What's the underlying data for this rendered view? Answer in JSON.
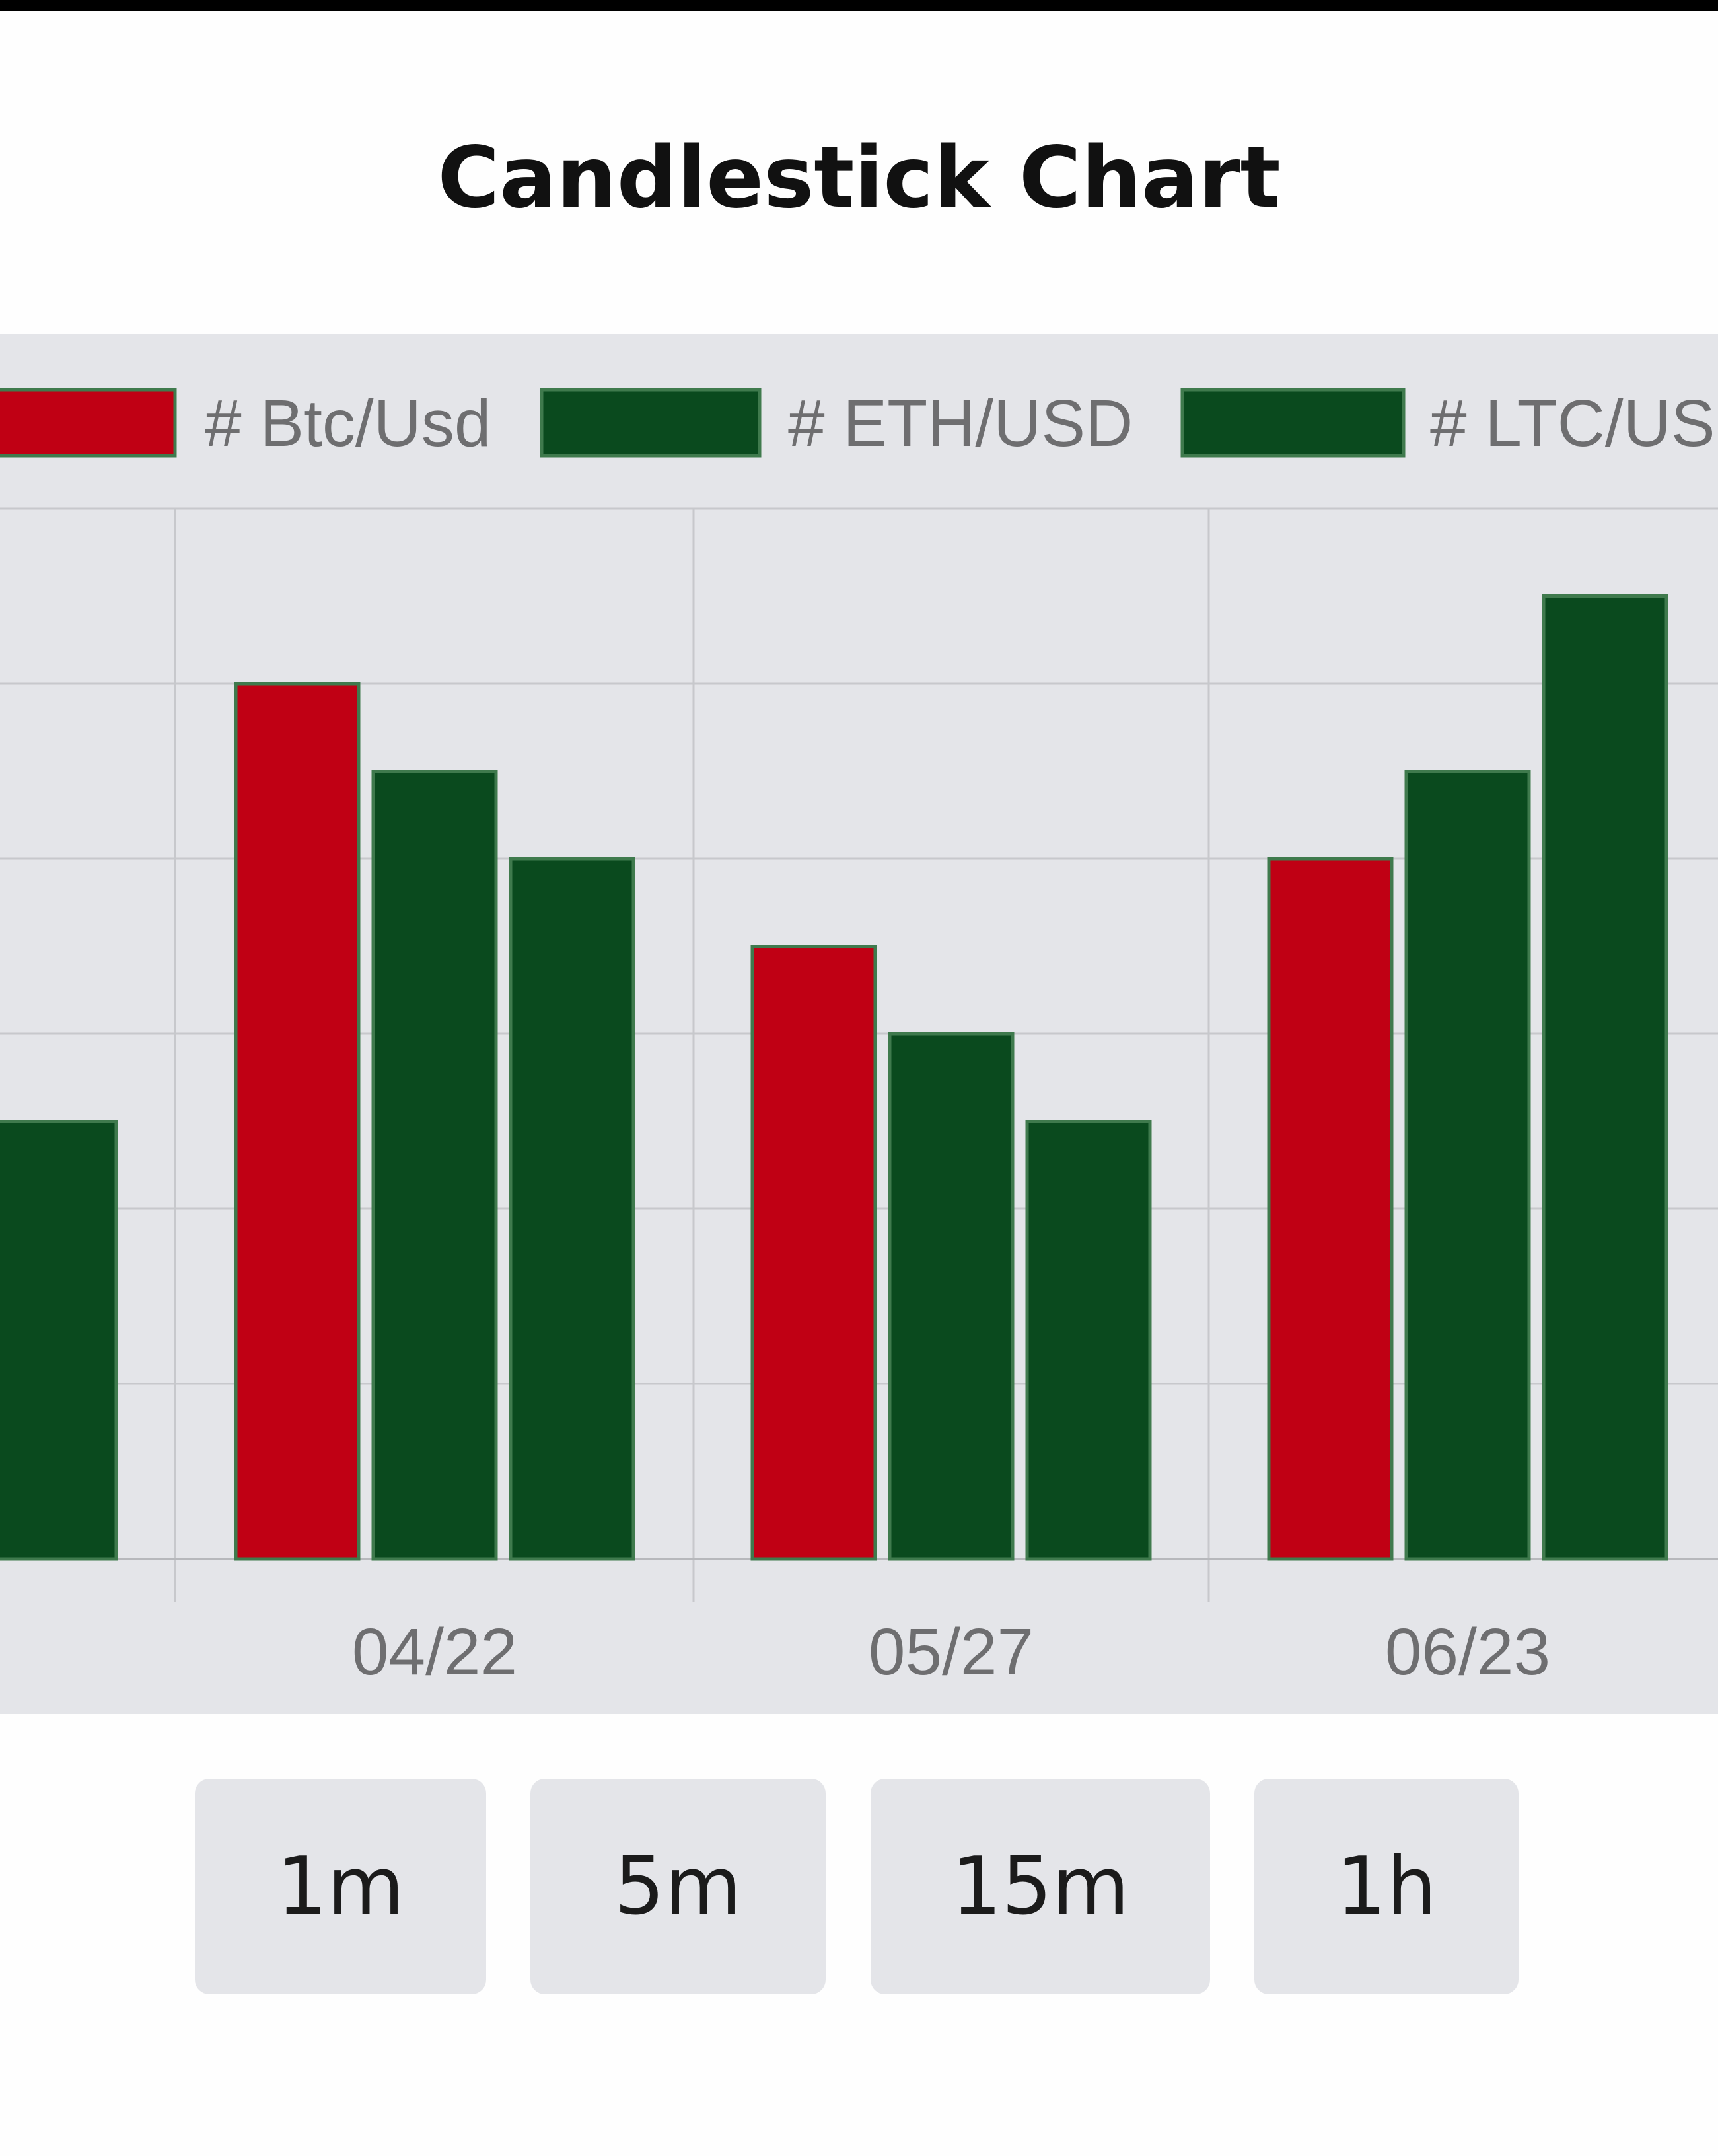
{
  "page": {
    "title": "Candlestick Chart"
  },
  "timeframes": [
    "1m",
    "5m",
    "15m",
    "1h"
  ],
  "chart_data": {
    "type": "bar",
    "categories": [
      "",
      "04/22",
      "05/27",
      "06/23"
    ],
    "series": [
      {
        "name": "# Btc/Usd",
        "values": [
          null,
          100,
          70,
          80
        ],
        "color": "#c00014"
      },
      {
        "name": "# ETH/USD",
        "values": [
          null,
          90,
          60,
          90
        ],
        "color": "#0a4a1e"
      },
      {
        "name": "# LTC/USD",
        "values": [
          50,
          80,
          50,
          110
        ],
        "color": "#0a4a1e"
      }
    ],
    "legend_position": "top",
    "grid": true,
    "ylim": [
      0,
      120
    ]
  }
}
